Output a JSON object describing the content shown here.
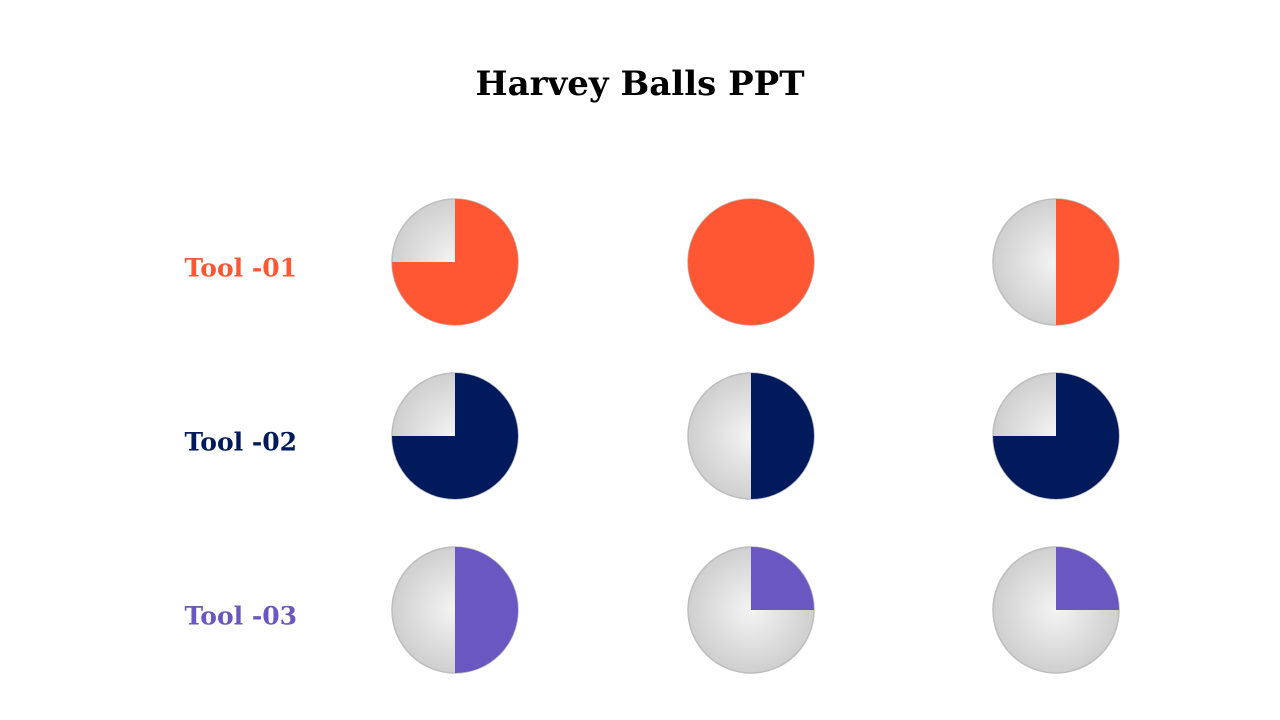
{
  "title": "Harvey Balls PPT",
  "rows": [
    {
      "label": "Tool -01",
      "color": "#ff5733",
      "values": [
        0.75,
        1,
        0.5
      ]
    },
    {
      "label": "Tool -02",
      "color": "#001a5c",
      "values": [
        0.75,
        0.5,
        0.75
      ]
    },
    {
      "label": "Tool -03",
      "color": "#6a57c1",
      "values": [
        0.5,
        0.25,
        0.25
      ]
    }
  ]
}
